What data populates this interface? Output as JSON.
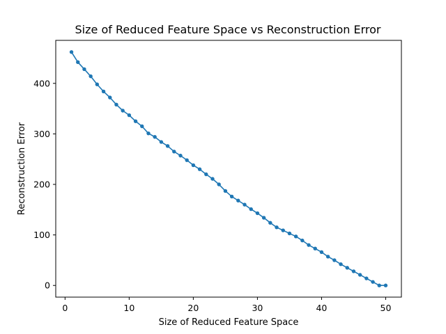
{
  "chart_data": {
    "type": "line",
    "title": "Size of Reduced Feature Space vs Reconstruction Error",
    "xlabel": "Size of Reduced Feature Space",
    "ylabel": "Reconstruction Error",
    "xlim": [
      -1.45,
      52.45
    ],
    "ylim": [
      -23.1,
      485.1
    ],
    "xticks": [
      0,
      10,
      20,
      30,
      40,
      50
    ],
    "yticks": [
      0,
      100,
      200,
      300,
      400
    ],
    "grid": false,
    "legend": "none",
    "series": [
      {
        "color": "#1f77b4",
        "marker": "circle",
        "x": [
          1,
          2,
          3,
          4,
          5,
          6,
          7,
          8,
          9,
          10,
          11,
          12,
          13,
          14,
          15,
          16,
          17,
          18,
          19,
          20,
          21,
          22,
          23,
          24,
          25,
          26,
          27,
          28,
          29,
          30,
          31,
          32,
          33,
          34,
          35,
          36,
          37,
          38,
          39,
          40,
          41,
          42,
          43,
          44,
          45,
          46,
          47,
          48,
          49,
          50
        ],
        "y": [
          462,
          442,
          428,
          414,
          398,
          384,
          372,
          358,
          346,
          337,
          325,
          315,
          301,
          294,
          284,
          276,
          265,
          257,
          248,
          238,
          230,
          220,
          211,
          200,
          187,
          176,
          168,
          160,
          151,
          143,
          134,
          124,
          115,
          109,
          103,
          97,
          89,
          80,
          73,
          66,
          57,
          50,
          42,
          35,
          28,
          21,
          14,
          7,
          0,
          0
        ]
      }
    ]
  }
}
